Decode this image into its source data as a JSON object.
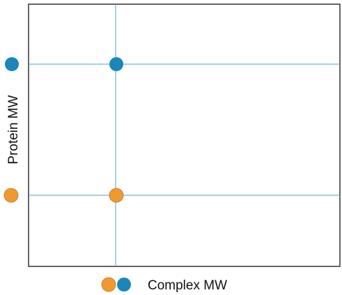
{
  "axes": {
    "x_label": "Complex MW",
    "y_label": "Protein MW"
  },
  "colors": {
    "frame": "#333333",
    "guide": "#4ba3d1",
    "blue_dot": "#1a87b8",
    "orange_dot": "#f2992e",
    "orange_dot_stroke": "#b9742a"
  }
}
